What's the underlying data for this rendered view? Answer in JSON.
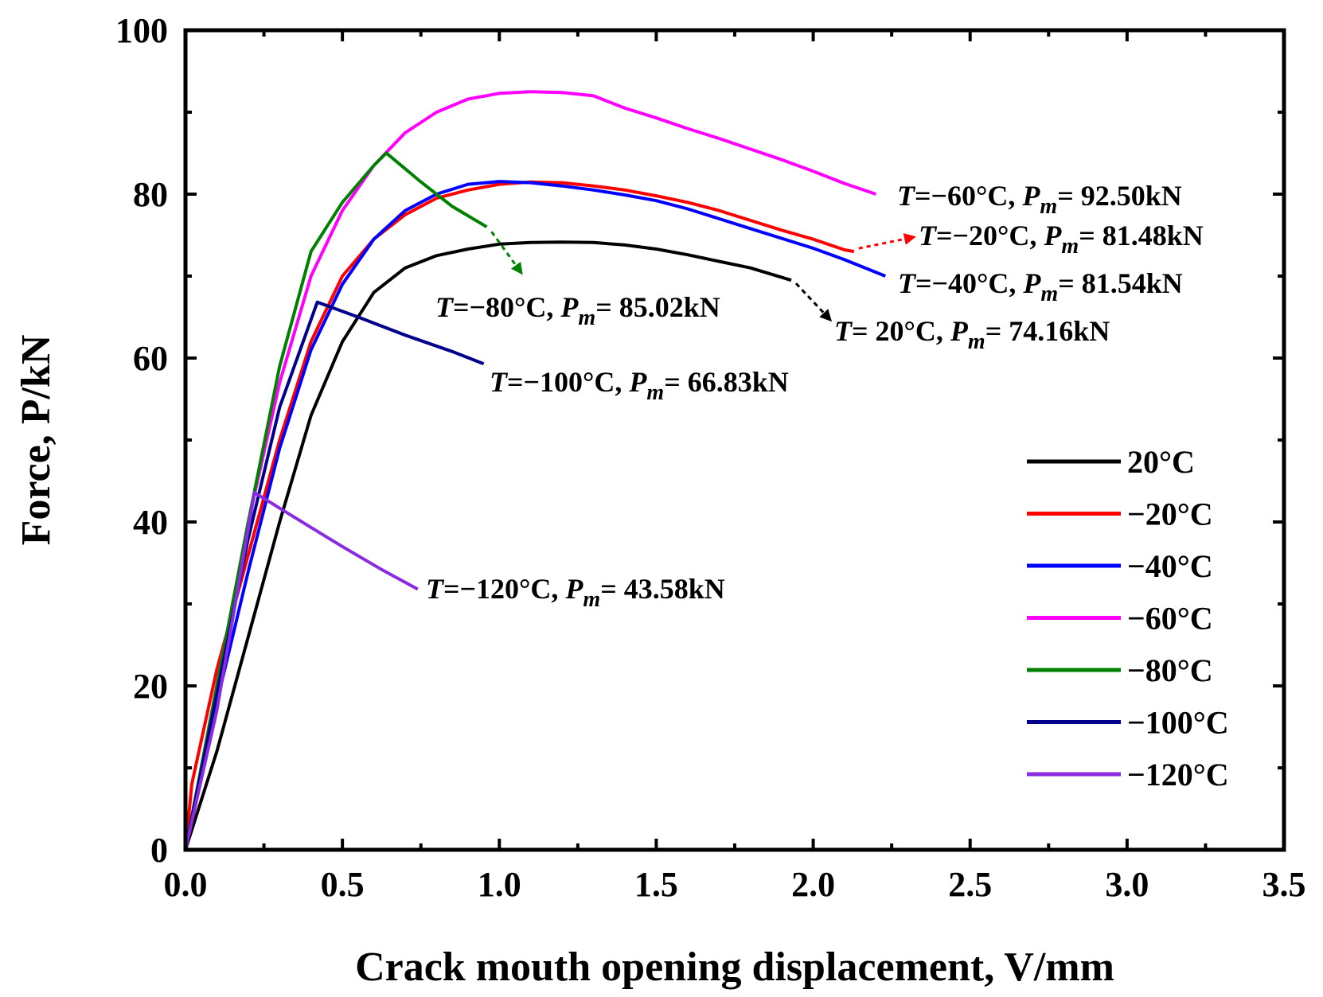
{
  "chart_data": {
    "type": "line",
    "xlabel": "Crack mouth opening displacement, V/mm",
    "ylabel": "Force, P/kN",
    "xlim": [
      0,
      3.5
    ],
    "ylim": [
      0,
      100
    ],
    "x_ticks": [
      "0.0",
      "0.5",
      "1.0",
      "1.5",
      "2.0",
      "2.5",
      "3.0",
      "3.5"
    ],
    "y_ticks": [
      "0",
      "20",
      "40",
      "60",
      "80",
      "100"
    ],
    "legend_position": "right",
    "series": [
      {
        "name": "20°C",
        "color": "#000000",
        "peak_label": "74.16kN",
        "points": [
          [
            0,
            0
          ],
          [
            0.1,
            12
          ],
          [
            0.2,
            26
          ],
          [
            0.3,
            40
          ],
          [
            0.4,
            53
          ],
          [
            0.5,
            62
          ],
          [
            0.6,
            68
          ],
          [
            0.7,
            71
          ],
          [
            0.8,
            72.5
          ],
          [
            0.9,
            73.3
          ],
          [
            1.0,
            73.9
          ],
          [
            1.1,
            74.1
          ],
          [
            1.2,
            74.16
          ],
          [
            1.3,
            74.1
          ],
          [
            1.4,
            73.8
          ],
          [
            1.5,
            73.3
          ],
          [
            1.6,
            72.6
          ],
          [
            1.7,
            71.8
          ],
          [
            1.8,
            71.0
          ],
          [
            1.93,
            69.5
          ]
        ]
      },
      {
        "name": "−20°C",
        "color": "#ff0000",
        "peak_label": "81.48kN",
        "points": [
          [
            0,
            0
          ],
          [
            0.02,
            8
          ],
          [
            0.1,
            22
          ],
          [
            0.2,
            36
          ],
          [
            0.3,
            50
          ],
          [
            0.4,
            62
          ],
          [
            0.5,
            70
          ],
          [
            0.6,
            74.5
          ],
          [
            0.7,
            77.5
          ],
          [
            0.8,
            79.5
          ],
          [
            0.9,
            80.5
          ],
          [
            1.0,
            81.2
          ],
          [
            1.1,
            81.48
          ],
          [
            1.2,
            81.4
          ],
          [
            1.3,
            81.0
          ],
          [
            1.4,
            80.5
          ],
          [
            1.5,
            79.8
          ],
          [
            1.6,
            79.0
          ],
          [
            1.7,
            78.0
          ],
          [
            1.8,
            76.8
          ],
          [
            1.9,
            75.6
          ],
          [
            2.0,
            74.5
          ],
          [
            2.1,
            73.2
          ],
          [
            2.13,
            73.0
          ]
        ]
      },
      {
        "name": "−40°C",
        "color": "#0000ff",
        "peak_label": "81.54kN",
        "points": [
          [
            0,
            0
          ],
          [
            0.1,
            18
          ],
          [
            0.2,
            34
          ],
          [
            0.3,
            49
          ],
          [
            0.4,
            61
          ],
          [
            0.5,
            69
          ],
          [
            0.6,
            74.5
          ],
          [
            0.7,
            78
          ],
          [
            0.8,
            80
          ],
          [
            0.9,
            81.2
          ],
          [
            1.0,
            81.54
          ],
          [
            1.1,
            81.4
          ],
          [
            1.2,
            81.0
          ],
          [
            1.3,
            80.5
          ],
          [
            1.4,
            79.9
          ],
          [
            1.5,
            79.2
          ],
          [
            1.6,
            78.2
          ],
          [
            1.7,
            77.0
          ],
          [
            1.8,
            75.8
          ],
          [
            1.9,
            74.6
          ],
          [
            2.0,
            73.4
          ],
          [
            2.1,
            72.0
          ],
          [
            2.23,
            70.0
          ]
        ]
      },
      {
        "name": "−60°C",
        "color": "#ff00ff",
        "peak_label": "92.50kN",
        "points": [
          [
            0,
            0
          ],
          [
            0.1,
            20
          ],
          [
            0.2,
            40
          ],
          [
            0.3,
            57
          ],
          [
            0.4,
            70
          ],
          [
            0.5,
            78
          ],
          [
            0.6,
            83.5
          ],
          [
            0.7,
            87.5
          ],
          [
            0.8,
            90
          ],
          [
            0.9,
            91.6
          ],
          [
            1.0,
            92.3
          ],
          [
            1.1,
            92.5
          ],
          [
            1.2,
            92.4
          ],
          [
            1.3,
            92.0
          ],
          [
            1.4,
            90.5
          ],
          [
            1.5,
            89.3
          ],
          [
            1.6,
            88.0
          ],
          [
            1.7,
            86.8
          ],
          [
            1.8,
            85.5
          ],
          [
            1.9,
            84.2
          ],
          [
            2.0,
            82.8
          ],
          [
            2.1,
            81.3
          ],
          [
            2.2,
            80.0
          ]
        ]
      },
      {
        "name": "−80°C",
        "color": "#008000",
        "peak_label": "85.02kN",
        "points": [
          [
            0,
            0
          ],
          [
            0.1,
            20
          ],
          [
            0.2,
            40
          ],
          [
            0.3,
            59
          ],
          [
            0.4,
            73
          ],
          [
            0.5,
            79
          ],
          [
            0.6,
            83.5
          ],
          [
            0.64,
            85.02
          ],
          [
            0.75,
            81.5
          ],
          [
            0.85,
            78.5
          ],
          [
            0.96,
            76.0
          ]
        ]
      },
      {
        "name": "−100°C",
        "color": "#00008b",
        "peak_label": "66.83kN",
        "points": [
          [
            0,
            0
          ],
          [
            0.1,
            19
          ],
          [
            0.2,
            38
          ],
          [
            0.3,
            54
          ],
          [
            0.42,
            66.83
          ],
          [
            0.55,
            65.0
          ],
          [
            0.7,
            62.8
          ],
          [
            0.85,
            60.8
          ],
          [
            0.95,
            59.3
          ]
        ]
      },
      {
        "name": "−120°C",
        "color": "#8a2be2",
        "peak_label": "43.58kN",
        "points": [
          [
            0,
            0
          ],
          [
            0.1,
            17
          ],
          [
            0.22,
            43.58
          ],
          [
            0.35,
            40.5
          ],
          [
            0.5,
            37.0
          ],
          [
            0.62,
            34.3
          ],
          [
            0.74,
            31.8
          ]
        ]
      }
    ],
    "annotations": [
      {
        "series": 3,
        "t_label": "=−60°C, ",
        "p_value": "= 92.50kN"
      },
      {
        "series": 1,
        "t_label": "=−20°C, ",
        "p_value": "= 81.48kN"
      },
      {
        "series": 2,
        "t_label": "=−40°C, ",
        "p_value": "= 81.54kN"
      },
      {
        "series": 4,
        "t_label": "=−80°C, ",
        "p_value": "= 85.02kN"
      },
      {
        "series": 0,
        "t_label": "= 20°C, ",
        "p_value": "= 74.16kN"
      },
      {
        "series": 5,
        "t_label": "=−100°C, ",
        "p_value": "= 66.83kN"
      },
      {
        "series": 6,
        "t_label": "=−120°C, ",
        "p_value": "= 43.58kN"
      }
    ],
    "annotation_symbols": {
      "t": "T",
      "p": "P",
      "p_sub": "m"
    }
  }
}
